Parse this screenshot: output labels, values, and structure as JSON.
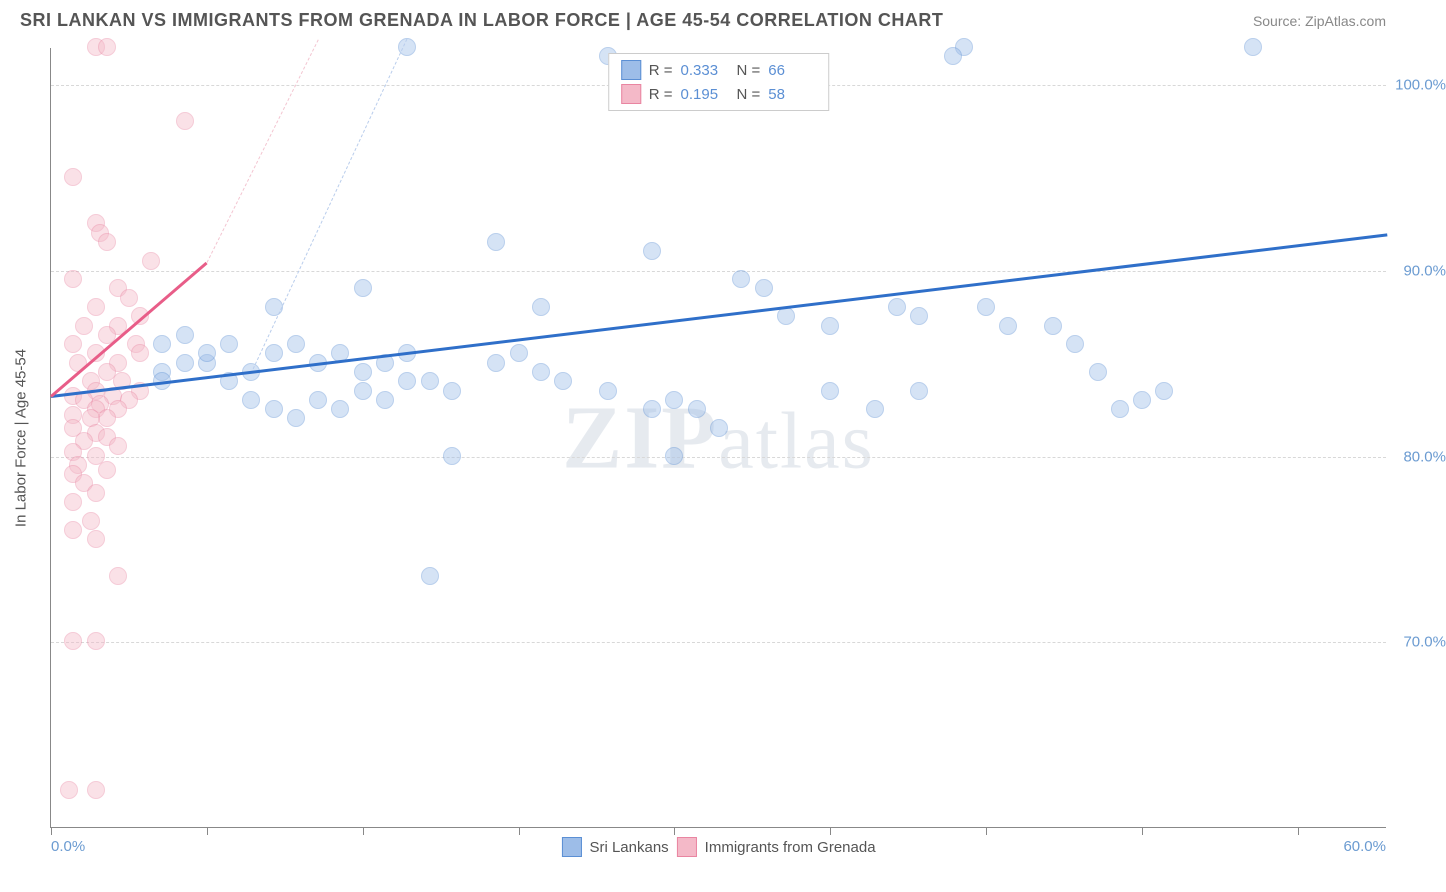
{
  "header": {
    "title": "SRI LANKAN VS IMMIGRANTS FROM GRENADA IN LABOR FORCE | AGE 45-54 CORRELATION CHART",
    "source": "Source: ZipAtlas.com"
  },
  "watermark": "ZIPatlas",
  "chart": {
    "type": "scatter",
    "yaxis_title": "In Labor Force | Age 45-54",
    "background_color": "#ffffff",
    "grid_color": "#d8d8d8",
    "xlim": [
      0,
      60
    ],
    "ylim": [
      60,
      102
    ],
    "xtick_positions": [
      0,
      7,
      14,
      21,
      28,
      35,
      42,
      49,
      56
    ],
    "xaxis_labels": {
      "left": "0.0%",
      "right": "60.0%"
    },
    "yticks": [
      {
        "value": 70,
        "label": "70.0%"
      },
      {
        "value": 80,
        "label": "80.0%"
      },
      {
        "value": 90,
        "label": "90.0%"
      },
      {
        "value": 100,
        "label": "100.0%"
      }
    ],
    "ytick_color": "#6b9bd1",
    "marker_radius": 9,
    "marker_opacity": 0.42,
    "series": [
      {
        "name": "Sri Lankans",
        "color_fill": "#9dbde8",
        "color_stroke": "#5b8fd4",
        "R": "0.333",
        "N": "66",
        "trend": {
          "x1": 0,
          "y1": 83.3,
          "x2": 60,
          "y2": 92.0,
          "color": "#2f6fc9",
          "width": 3,
          "dash": false
        },
        "trend_ext": {
          "x1": 9,
          "y1": 84.5,
          "x2": 16,
          "y2": 102.5,
          "color": "#b9cdec",
          "width": 1,
          "dash": true
        },
        "points": [
          [
            16,
            102
          ],
          [
            41,
            102
          ],
          [
            54,
            102
          ],
          [
            40.5,
            101.5
          ],
          [
            25,
            101.5
          ],
          [
            20,
            91.5
          ],
          [
            27,
            91
          ],
          [
            32,
            89
          ],
          [
            14,
            89
          ],
          [
            22,
            88
          ],
          [
            10,
            88
          ],
          [
            31,
            89.5
          ],
          [
            33,
            87.5
          ],
          [
            35,
            87
          ],
          [
            35,
            83.5
          ],
          [
            38,
            88
          ],
          [
            39,
            87.5
          ],
          [
            42,
            88
          ],
          [
            43,
            87
          ],
          [
            45,
            87
          ],
          [
            46,
            86
          ],
          [
            47,
            84.5
          ],
          [
            48,
            82.5
          ],
          [
            49,
            83
          ],
          [
            50,
            83.5
          ],
          [
            7,
            85
          ],
          [
            8,
            86
          ],
          [
            9,
            84.5
          ],
          [
            10,
            85.5
          ],
          [
            11,
            86
          ],
          [
            12,
            85
          ],
          [
            13,
            85.5
          ],
          [
            14,
            84.5
          ],
          [
            15,
            85
          ],
          [
            16,
            85.5
          ],
          [
            17,
            84
          ],
          [
            18,
            83.5
          ],
          [
            16,
            84
          ],
          [
            15,
            83
          ],
          [
            14,
            83.5
          ],
          [
            13,
            82.5
          ],
          [
            12,
            83
          ],
          [
            11,
            82
          ],
          [
            10,
            82.5
          ],
          [
            9,
            83
          ],
          [
            8,
            84
          ],
          [
            7,
            85.5
          ],
          [
            6,
            85
          ],
          [
            5,
            84.5
          ],
          [
            5,
            86
          ],
          [
            5,
            84
          ],
          [
            6,
            86.5
          ],
          [
            20,
            85
          ],
          [
            21,
            85.5
          ],
          [
            22,
            84.5
          ],
          [
            23,
            84
          ],
          [
            25,
            83.5
          ],
          [
            27,
            82.5
          ],
          [
            28,
            83
          ],
          [
            29,
            82.5
          ],
          [
            30,
            81.5
          ],
          [
            18,
            80
          ],
          [
            28,
            80
          ],
          [
            37,
            82.5
          ],
          [
            17,
            73.5
          ],
          [
            39,
            83.5
          ]
        ]
      },
      {
        "name": "Immigrants from Grenada",
        "color_fill": "#f4b9c8",
        "color_stroke": "#e985a1",
        "R": "0.195",
        "N": "58",
        "trend": {
          "x1": 0,
          "y1": 83.3,
          "x2": 7,
          "y2": 90.5,
          "color": "#e85d88",
          "width": 3,
          "dash": false
        },
        "trend_ext": {
          "x1": 7,
          "y1": 90.5,
          "x2": 12,
          "y2": 102.5,
          "color": "#f3c5d1",
          "width": 1,
          "dash": true
        },
        "points": [
          [
            2,
            102
          ],
          [
            2.5,
            102
          ],
          [
            6,
            98
          ],
          [
            1,
            95
          ],
          [
            2,
            92.5
          ],
          [
            2.2,
            92
          ],
          [
            2.5,
            91.5
          ],
          [
            4.5,
            90.5
          ],
          [
            1,
            89.5
          ],
          [
            3,
            89
          ],
          [
            3.5,
            88.5
          ],
          [
            2,
            88
          ],
          [
            4,
            87.5
          ],
          [
            1.5,
            87
          ],
          [
            3,
            87
          ],
          [
            2.5,
            86.5
          ],
          [
            1,
            86
          ],
          [
            3.8,
            86
          ],
          [
            2,
            85.5
          ],
          [
            4,
            85.5
          ],
          [
            1.2,
            85
          ],
          [
            3,
            85
          ],
          [
            2.5,
            84.5
          ],
          [
            1.8,
            84
          ],
          [
            3.2,
            84
          ],
          [
            2,
            83.5
          ],
          [
            4,
            83.5
          ],
          [
            1,
            83.2
          ],
          [
            2.8,
            83.2
          ],
          [
            1.5,
            83
          ],
          [
            3.5,
            83
          ],
          [
            2.2,
            82.8
          ],
          [
            2,
            82.5
          ],
          [
            1,
            82.2
          ],
          [
            3,
            82.5
          ],
          [
            2.5,
            82
          ],
          [
            1.8,
            82
          ],
          [
            1,
            81.5
          ],
          [
            2,
            81.2
          ],
          [
            2.5,
            81
          ],
          [
            1.5,
            80.8
          ],
          [
            3,
            80.5
          ],
          [
            1,
            80.2
          ],
          [
            2,
            80
          ],
          [
            1.2,
            79.5
          ],
          [
            2.5,
            79.2
          ],
          [
            1,
            79
          ],
          [
            1.5,
            78.5
          ],
          [
            2,
            78
          ],
          [
            1,
            77.5
          ],
          [
            1.8,
            76.5
          ],
          [
            1,
            76
          ],
          [
            2,
            75.5
          ],
          [
            3,
            73.5
          ],
          [
            1,
            70
          ],
          [
            2,
            70
          ],
          [
            0.8,
            62
          ],
          [
            2,
            62
          ]
        ]
      }
    ],
    "bottom_legend": [
      {
        "label": "Sri Lankans",
        "fill": "#9dbde8",
        "stroke": "#5b8fd4"
      },
      {
        "label": "Immigrants from Grenada",
        "fill": "#f4b9c8",
        "stroke": "#e985a1"
      }
    ]
  }
}
